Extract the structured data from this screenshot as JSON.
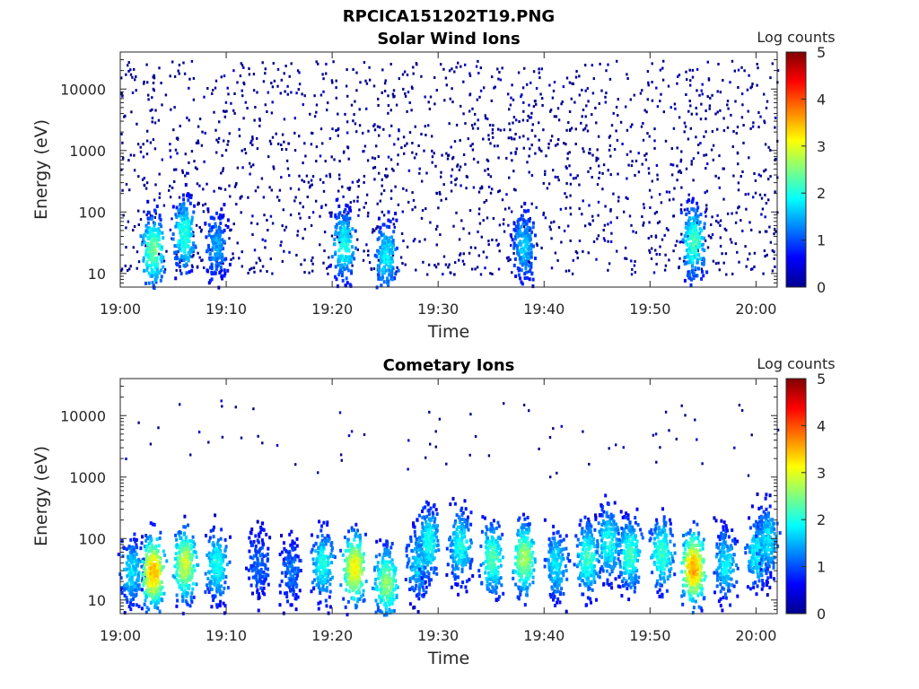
{
  "figure": {
    "title": "RPCICA151202T19.PNG"
  },
  "chart_data": [
    {
      "type": "heatmap",
      "title": "Solar Wind Ions",
      "xlabel": "Time",
      "ylabel": "Energy (eV)",
      "yscale": "log",
      "ylim": [
        6,
        40000
      ],
      "xlim": [
        "19:00",
        "20:02"
      ],
      "x_ticks": [
        "19:00",
        "19:10",
        "19:20",
        "19:30",
        "19:40",
        "19:50",
        "20:00"
      ],
      "y_ticks": [
        "10",
        "100",
        "1000",
        "10000"
      ],
      "colorbar": {
        "label": "Log counts",
        "range": [
          0,
          5
        ],
        "ticks": [
          "0",
          "1",
          "2",
          "3",
          "4",
          "5"
        ],
        "colormap": "jet"
      },
      "bursts": [
        {
          "time": "19:03",
          "energy": 25,
          "log_counts": 2.2
        },
        {
          "time": "19:06",
          "energy": 45,
          "log_counts": 1.9
        },
        {
          "time": "19:09",
          "energy": 30,
          "log_counts": 1.2
        },
        {
          "time": "19:21",
          "energy": 30,
          "log_counts": 1.8
        },
        {
          "time": "19:25",
          "energy": 20,
          "log_counts": 1.6
        },
        {
          "time": "19:38",
          "energy": 30,
          "log_counts": 1.4
        },
        {
          "time": "19:54",
          "energy": 35,
          "log_counts": 2.0
        }
      ],
      "background": {
        "energy_range": [
          10,
          30000
        ],
        "log_counts": 0.3
      }
    },
    {
      "type": "heatmap",
      "title": "Cometary Ions",
      "xlabel": "Time",
      "ylabel": "Energy (eV)",
      "yscale": "log",
      "ylim": [
        6,
        40000
      ],
      "xlim": [
        "19:00",
        "20:02"
      ],
      "x_ticks": [
        "19:00",
        "19:10",
        "19:20",
        "19:30",
        "19:40",
        "19:50",
        "20:00"
      ],
      "y_ticks": [
        "10",
        "100",
        "1000",
        "10000"
      ],
      "colorbar": {
        "label": "Log counts",
        "range": [
          0,
          5
        ],
        "ticks": [
          "0",
          "1",
          "2",
          "3",
          "4",
          "5"
        ],
        "colormap": "jet"
      },
      "bursts": [
        {
          "time": "19:01",
          "energy": 30,
          "log_counts": 1.5
        },
        {
          "time": "19:03",
          "energy": 30,
          "log_counts": 3.3
        },
        {
          "time": "19:06",
          "energy": 40,
          "log_counts": 2.7
        },
        {
          "time": "19:09",
          "energy": 40,
          "log_counts": 1.8
        },
        {
          "time": "19:13",
          "energy": 40,
          "log_counts": 1.0
        },
        {
          "time": "19:16",
          "energy": 30,
          "log_counts": 1.0
        },
        {
          "time": "19:19",
          "energy": 40,
          "log_counts": 1.8
        },
        {
          "time": "19:22",
          "energy": 35,
          "log_counts": 3.0
        },
        {
          "time": "19:25",
          "energy": 20,
          "log_counts": 2.4
        },
        {
          "time": "19:28",
          "energy": 40,
          "log_counts": 1.5
        },
        {
          "time": "19:29",
          "energy": 90,
          "log_counts": 1.8
        },
        {
          "time": "19:32",
          "energy": 80,
          "log_counts": 1.8
        },
        {
          "time": "19:35",
          "energy": 50,
          "log_counts": 2.1
        },
        {
          "time": "19:38",
          "energy": 50,
          "log_counts": 2.5
        },
        {
          "time": "19:41",
          "energy": 40,
          "log_counts": 1.6
        },
        {
          "time": "19:44",
          "energy": 50,
          "log_counts": 2.0
        },
        {
          "time": "19:46",
          "energy": 90,
          "log_counts": 1.8
        },
        {
          "time": "19:48",
          "energy": 60,
          "log_counts": 2.0
        },
        {
          "time": "19:51",
          "energy": 60,
          "log_counts": 2.0
        },
        {
          "time": "19:54",
          "energy": 35,
          "log_counts": 3.4
        },
        {
          "time": "19:57",
          "energy": 40,
          "log_counts": 1.6
        },
        {
          "time": "20:00",
          "energy": 60,
          "log_counts": 1.7
        },
        {
          "time": "20:01",
          "energy": 100,
          "log_counts": 1.6
        }
      ],
      "background": {
        "energy_range": [
          1000,
          20000
        ],
        "log_counts": 0.2
      }
    }
  ]
}
